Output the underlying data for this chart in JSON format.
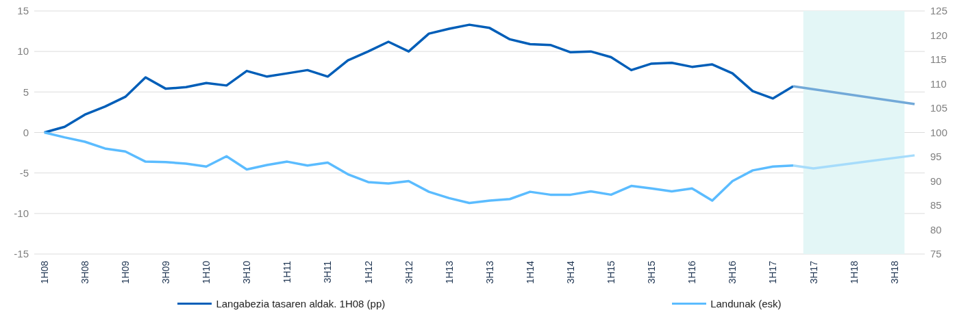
{
  "chart_data": {
    "type": "line",
    "categories": [
      "1H08",
      null,
      "3H08",
      null,
      "1H09",
      null,
      "3H09",
      null,
      "1H10",
      null,
      "3H10",
      null,
      "1H11",
      null,
      "3H11",
      null,
      "1H12",
      null,
      "3H12",
      null,
      "1H13",
      null,
      "3H13",
      null,
      "1H14",
      null,
      "3H14",
      null,
      "1H15",
      null,
      "3H15",
      null,
      "1H16",
      null,
      "3H16",
      null,
      "1H17",
      null,
      "3H17",
      null,
      "1H18",
      null,
      "3H18",
      null
    ],
    "series": [
      {
        "name": "Langabezia tasaren aldak. 1H08 (pp)",
        "color": "#005eb8",
        "axis": "y",
        "values": [
          0,
          0.7,
          2.2,
          3.2,
          4.4,
          6.8,
          5.4,
          5.6,
          6.1,
          5.8,
          7.6,
          6.9,
          7.3,
          7.7,
          6.9,
          8.9,
          10.0,
          11.2,
          10.0,
          12.2,
          12.8,
          13.3,
          12.9,
          11.5,
          10.9,
          10.8,
          9.9,
          10.0,
          9.3,
          7.7,
          8.5,
          8.6,
          8.1,
          8.4,
          7.3,
          5.1,
          4.2,
          5.7,
          null,
          null,
          null,
          null,
          null,
          null
        ]
      },
      {
        "name": "Landunak (esk)",
        "color": "#5bbcff",
        "axis": "y2",
        "values": [
          100,
          99.0,
          98.1,
          96.7,
          96.1,
          94.0,
          93.9,
          93.6,
          93.0,
          95.1,
          92.4,
          93.3,
          94.0,
          93.2,
          93.8,
          91.4,
          89.8,
          89.5,
          90.0,
          87.8,
          86.5,
          85.5,
          86.0,
          86.3,
          87.8,
          87.2,
          87.2,
          87.9,
          87.2,
          89.0,
          88.5,
          87.9,
          88.5,
          86.0,
          90.0,
          92.2,
          93.0,
          93.2,
          null,
          null,
          null,
          null,
          null,
          null
        ]
      },
      {
        "color": "#72a9d8",
        "axis": "y",
        "values": [
          null,
          null,
          null,
          null,
          null,
          null,
          null,
          null,
          null,
          null,
          null,
          null,
          null,
          null,
          null,
          null,
          null,
          null,
          null,
          null,
          null,
          null,
          null,
          null,
          null,
          null,
          null,
          null,
          null,
          null,
          null,
          null,
          null,
          null,
          null,
          null,
          null,
          5.7,
          null,
          null,
          null,
          null,
          null,
          3.5
        ]
      },
      {
        "color": "#a6dcfb",
        "axis": "y2",
        "values": [
          null,
          null,
          null,
          null,
          null,
          null,
          null,
          null,
          null,
          null,
          null,
          null,
          null,
          null,
          null,
          null,
          null,
          null,
          null,
          null,
          null,
          null,
          null,
          null,
          null,
          null,
          null,
          null,
          null,
          null,
          null,
          null,
          null,
          null,
          null,
          null,
          null,
          93.2,
          92.6,
          null,
          null,
          null,
          null,
          95.3
        ]
      }
    ],
    "ylim": [
      -15,
      15
    ],
    "yticks": [
      -15,
      -10,
      -5,
      0,
      5,
      10,
      15
    ],
    "y2lim": [
      75,
      125
    ],
    "y2ticks": [
      75,
      80,
      85,
      90,
      95,
      100,
      105,
      110,
      115,
      120,
      125
    ],
    "bands": [
      {
        "axis": "x",
        "from": "3H17",
        "to": "3H18",
        "color": "#e3f6f6"
      }
    ],
    "grid": "y",
    "legend": "bottom",
    "marker": "none",
    "line_style": "solid"
  }
}
